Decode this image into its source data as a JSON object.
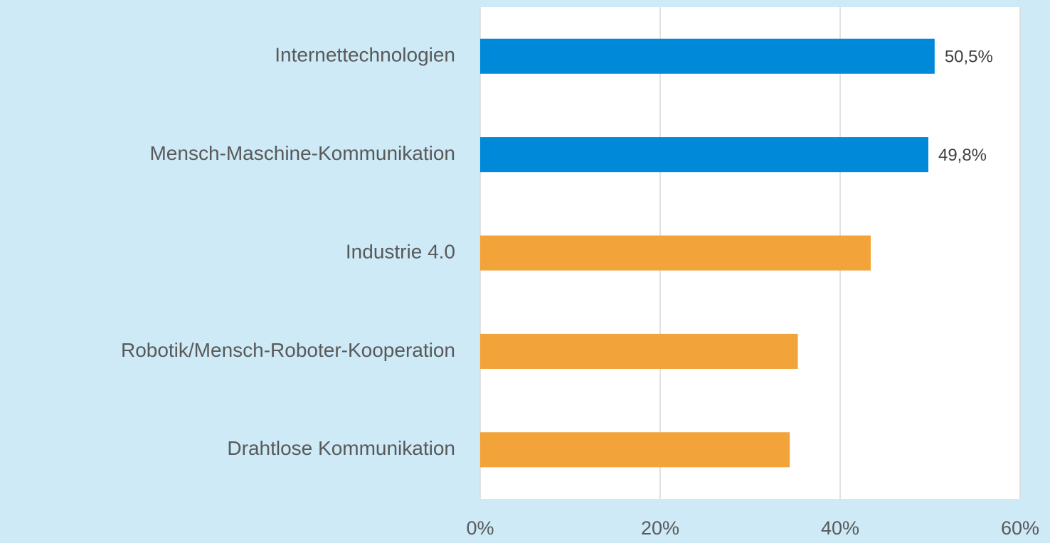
{
  "chart_data": {
    "type": "barh",
    "categories": [
      "Internettechnologien",
      "Mensch-Maschine-Kommunikation",
      "Industrie 4.0",
      "Robotik/Mensch-Roboter-Kooperation",
      "Drahtlose Kommunikation"
    ],
    "values": [
      50.5,
      49.8,
      43.4,
      35.3,
      34.4
    ],
    "value_labels": [
      "50,5%",
      "49,8%",
      null,
      null,
      null
    ],
    "colors": [
      "#0089d9",
      "#0089d9",
      "#f2a33a",
      "#f2a33a",
      "#f2a33a"
    ],
    "xlim": [
      0,
      60
    ],
    "xticks": [
      {
        "value": 0,
        "label": "0%"
      },
      {
        "value": 20,
        "label": "20%"
      },
      {
        "value": 40,
        "label": "40%"
      },
      {
        "value": 60,
        "label": "60%"
      }
    ],
    "grid": true
  }
}
